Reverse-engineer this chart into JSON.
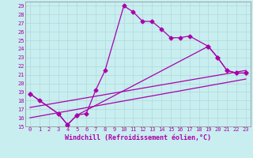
{
  "xlabel": "Windchill (Refroidissement éolien,°C)",
  "bg_color": "#c8eef0",
  "grid_color": "#b0d8da",
  "line_color": "#aa00aa",
  "xlim": [
    -0.5,
    23.5
  ],
  "ylim": [
    15,
    29.5
  ],
  "xticks": [
    0,
    1,
    2,
    3,
    4,
    5,
    6,
    7,
    8,
    9,
    10,
    11,
    12,
    13,
    14,
    15,
    16,
    17,
    18,
    19,
    20,
    21,
    22,
    23
  ],
  "yticks": [
    15,
    16,
    17,
    18,
    19,
    20,
    21,
    22,
    23,
    24,
    25,
    26,
    27,
    28,
    29
  ],
  "line1_x": [
    0,
    1,
    3,
    4,
    5,
    6,
    7,
    8,
    10,
    11,
    12,
    13,
    14,
    15,
    16,
    17,
    19,
    20,
    21,
    22,
    23
  ],
  "line1_y": [
    18.8,
    18.0,
    16.5,
    15.2,
    16.3,
    16.5,
    19.2,
    21.5,
    29.0,
    28.3,
    27.2,
    27.2,
    26.3,
    25.3,
    25.3,
    25.5,
    24.3,
    23.0,
    21.5,
    21.2,
    21.2
  ],
  "line2_x": [
    0,
    3,
    4,
    5,
    19,
    20,
    21,
    22,
    23
  ],
  "line2_y": [
    18.8,
    16.5,
    15.2,
    16.3,
    24.3,
    23.0,
    21.5,
    21.2,
    21.2
  ],
  "line3_x": [
    0,
    23
  ],
  "line3_y": [
    17.2,
    21.5
  ],
  "line4_x": [
    0,
    23
  ],
  "line4_y": [
    16.0,
    20.5
  ],
  "marker": "D",
  "markersize": 2.5,
  "linewidth": 0.9,
  "tick_fontsize": 5.0,
  "label_fontsize": 6.0
}
